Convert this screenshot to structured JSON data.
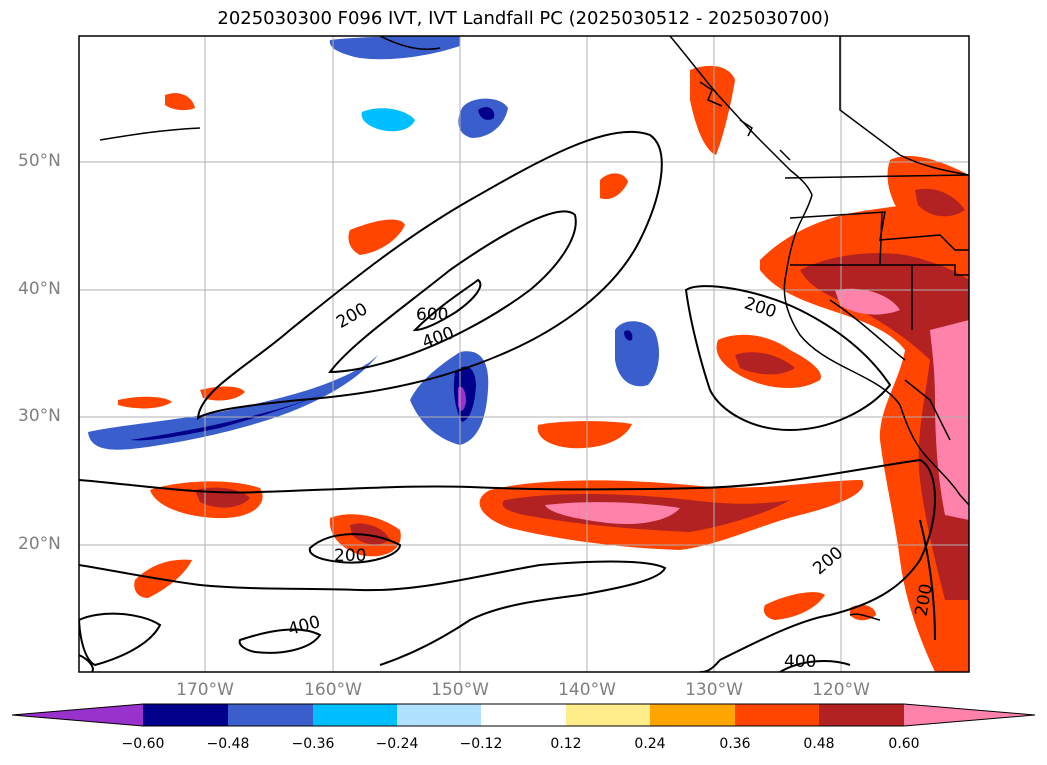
{
  "title": "2025030300 F096 IVT, IVT Landfall PC (2025030512 - 2025030700)",
  "lat_labels": [
    "50°N",
    "40°N",
    "30°N",
    "20°N"
  ],
  "lon_labels": [
    "170°W",
    "160°W",
    "150°W",
    "140°W",
    "130°W",
    "120°W"
  ],
  "colorbar": {
    "ticks": [
      "−0.60",
      "−0.48",
      "−0.36",
      "−0.24",
      "−0.12",
      "0.12",
      "0.24",
      "0.36",
      "0.48",
      "0.60"
    ],
    "colors": [
      "#9932CC",
      "#00008B",
      "#3A5FCD",
      "#00BFFF",
      "#B0E2FF",
      "#FFFFFF",
      "#FFEC8B",
      "#FFA500",
      "#FF4500",
      "#B22222",
      "#FF82AB"
    ]
  },
  "contour_labels": {
    "c200a": "200",
    "c600": "600",
    "c400a": "400",
    "c200b": "200",
    "c200c": "200",
    "c400b": "400",
    "c200d": "200",
    "c200e": "200",
    "c400c": "400"
  },
  "colors": {
    "coast": "#000000",
    "grid": "#b0b0b0"
  }
}
